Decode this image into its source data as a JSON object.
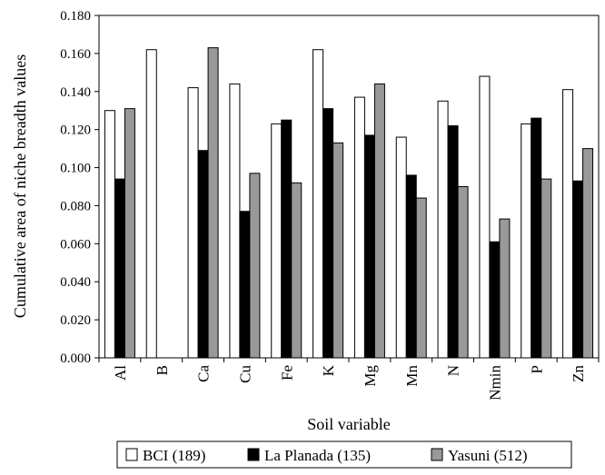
{
  "chart_data": {
    "type": "bar",
    "title": "",
    "xlabel": "Soil variable",
    "ylabel": "Cumulative area of niche breadth values",
    "ylim": [
      0,
      0.18
    ],
    "yticks": [
      "0.000",
      "0.020",
      "0.040",
      "0.060",
      "0.080",
      "0.100",
      "0.120",
      "0.140",
      "0.160",
      "0.180"
    ],
    "categories": [
      "Al",
      "B",
      "Ca",
      "Cu",
      "Fe",
      "K",
      "Mg",
      "Mn",
      "N",
      "Nmin",
      "P",
      "Zn"
    ],
    "series": [
      {
        "name": "BCI (189)",
        "color": "#ffffff",
        "values": [
          0.13,
          0.162,
          0.142,
          0.144,
          0.123,
          0.162,
          0.137,
          0.116,
          0.135,
          0.148,
          0.123,
          0.141
        ]
      },
      {
        "name": "La Planada (135)",
        "color": "#000000",
        "values": [
          0.094,
          null,
          0.109,
          0.077,
          0.125,
          0.131,
          0.117,
          0.096,
          0.122,
          0.061,
          0.126,
          0.093
        ]
      },
      {
        "name": "Yasuni (512)",
        "color": "#999999",
        "values": [
          0.131,
          null,
          0.163,
          0.097,
          0.092,
          0.113,
          0.144,
          0.084,
          0.09,
          0.073,
          0.094,
          0.11
        ]
      }
    ],
    "grid": false,
    "legend_position": "bottom"
  }
}
